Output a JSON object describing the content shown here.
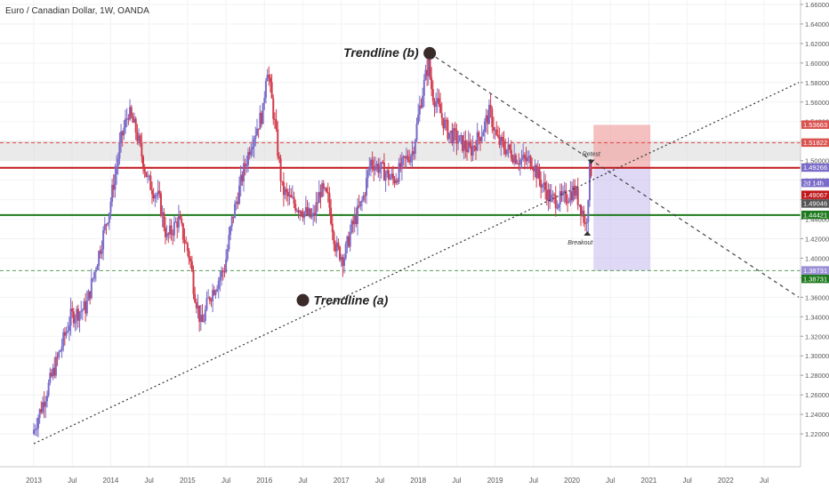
{
  "symbol_title": "Euro / Canadian Dollar, 1W, OANDA",
  "colors": {
    "up": "#7a6cc8",
    "down": "#d23a4a",
    "grid": "#f0f2f5",
    "resistance": "#c0181b",
    "support": "#1e7a1e",
    "axis_text": "#555555"
  },
  "chart_data": {
    "type": "candlestick",
    "title": "Euro / Canadian Dollar, 1W, OANDA",
    "ylim": [
      1.2,
      1.66
    ],
    "y_ticks": [
      "1.66000",
      "1.64000",
      "1.62000",
      "1.60000",
      "1.58000",
      "1.56000",
      "1.54000",
      "1.52000",
      "1.50000",
      "1.48000",
      "1.46000",
      "1.44000",
      "1.42000",
      "1.40000",
      "1.38000",
      "1.36000",
      "1.34000",
      "1.32000",
      "1.30000",
      "1.28000",
      "1.26000",
      "1.24000",
      "1.22000"
    ],
    "x_ticks": [
      "2013",
      "Jul",
      "2014",
      "Jul",
      "2015",
      "Jul",
      "2016",
      "Jul",
      "2017",
      "Jul",
      "2018",
      "Jul",
      "2019",
      "Jul",
      "2020",
      "Jul",
      "2021",
      "Jul",
      "2022",
      "Jul"
    ],
    "price_path": [
      [
        2013.0,
        1.22
      ],
      [
        2013.3,
        1.29
      ],
      [
        2013.5,
        1.34
      ],
      [
        2013.7,
        1.35
      ],
      [
        2013.85,
        1.4
      ],
      [
        2014.0,
        1.45
      ],
      [
        2014.15,
        1.52
      ],
      [
        2014.25,
        1.55
      ],
      [
        2014.35,
        1.53
      ],
      [
        2014.5,
        1.48
      ],
      [
        2014.65,
        1.46
      ],
      [
        2014.75,
        1.42
      ],
      [
        2014.9,
        1.44
      ],
      [
        2015.05,
        1.4
      ],
      [
        2015.1,
        1.37
      ],
      [
        2015.2,
        1.33
      ],
      [
        2015.3,
        1.36
      ],
      [
        2015.5,
        1.39
      ],
      [
        2015.6,
        1.44
      ],
      [
        2015.75,
        1.49
      ],
      [
        2015.85,
        1.52
      ],
      [
        2016.0,
        1.55
      ],
      [
        2016.05,
        1.6
      ],
      [
        2016.15,
        1.54
      ],
      [
        2016.25,
        1.47
      ],
      [
        2016.35,
        1.46
      ],
      [
        2016.5,
        1.45
      ],
      [
        2016.65,
        1.44
      ],
      [
        2016.75,
        1.47
      ],
      [
        2016.85,
        1.46
      ],
      [
        2016.95,
        1.41
      ],
      [
        2017.05,
        1.4
      ],
      [
        2017.15,
        1.43
      ],
      [
        2017.3,
        1.46
      ],
      [
        2017.4,
        1.5
      ],
      [
        2017.55,
        1.49
      ],
      [
        2017.7,
        1.48
      ],
      [
        2017.85,
        1.5
      ],
      [
        2017.95,
        1.51
      ],
      [
        2018.05,
        1.56
      ],
      [
        2018.15,
        1.6
      ],
      [
        2018.2,
        1.57
      ],
      [
        2018.3,
        1.55
      ],
      [
        2018.4,
        1.53
      ],
      [
        2018.55,
        1.52
      ],
      [
        2018.7,
        1.51
      ],
      [
        2018.85,
        1.53
      ],
      [
        2018.95,
        1.55
      ],
      [
        2019.05,
        1.52
      ],
      [
        2019.2,
        1.51
      ],
      [
        2019.35,
        1.5
      ],
      [
        2019.5,
        1.5
      ],
      [
        2019.6,
        1.48
      ],
      [
        2019.75,
        1.46
      ],
      [
        2019.9,
        1.46
      ],
      [
        2020.05,
        1.47
      ],
      [
        2020.15,
        1.45
      ],
      [
        2020.2,
        1.43
      ],
      [
        2020.25,
        1.49
      ]
    ],
    "horizontal_levels": [
      {
        "price": 1.51822,
        "label": "1.51822",
        "style": "dashed-red"
      },
      {
        "price": 1.49266,
        "label": "1.49266",
        "style": "solid-red"
      },
      {
        "price": 1.44421,
        "label": "1.44421",
        "style": "solid-green"
      },
      {
        "price": 1.38731,
        "label": "1.38731",
        "style": "dashed-green"
      }
    ],
    "resistance_zone": [
      1.5,
      1.52
    ],
    "trendlines": [
      {
        "name": "Trendline (a)",
        "from": [
          2013.0,
          1.21
        ],
        "to": [
          2022.95,
          1.58
        ]
      },
      {
        "name": "Trendline (b)",
        "from": [
          2018.15,
          1.61
        ],
        "to": [
          2022.95,
          1.36
        ]
      }
    ],
    "projection_box": {
      "x_from": 2020.28,
      "x_to": 2021.02,
      "top": 1.53663,
      "entry": 1.49266,
      "bottom": 1.38731
    },
    "annotations": [
      {
        "text": "Trendline (b)",
        "x": 2018.15,
        "y": 1.61
      },
      {
        "text": "Trendline (a)",
        "x": 2016.5,
        "y": 1.357
      },
      {
        "text": "Retest",
        "x": 2020.25,
        "y": 1.5
      },
      {
        "text": "Breakout",
        "x": 2020.2,
        "y": 1.425
      }
    ],
    "price_labels": [
      {
        "text": "1.53663",
        "price": 1.53663,
        "color": "#d9534f"
      },
      {
        "text": "1.51822",
        "price": 1.51822,
        "color": "#d9534f"
      },
      {
        "text": "1.49266",
        "price": 1.49266,
        "color": "#7a6cc8"
      },
      {
        "text": "2d 14h",
        "price": 1.48566,
        "color": "#7a6cc8"
      },
      {
        "text": "1.49067",
        "price": 1.49067,
        "color": "#c0181b",
        "offset": 1
      },
      {
        "text": "1.49046",
        "price": 1.49046,
        "color": "#555555",
        "offset": 2
      },
      {
        "text": "1.44421",
        "price": 1.44421,
        "color": "#1e7a1e"
      },
      {
        "text": "1.38731",
        "price": 1.38731,
        "color": "#9b8fd6"
      },
      {
        "text": "1.38731",
        "price": 1.38731,
        "color": "#1e7a1e",
        "offset": 1
      }
    ]
  }
}
